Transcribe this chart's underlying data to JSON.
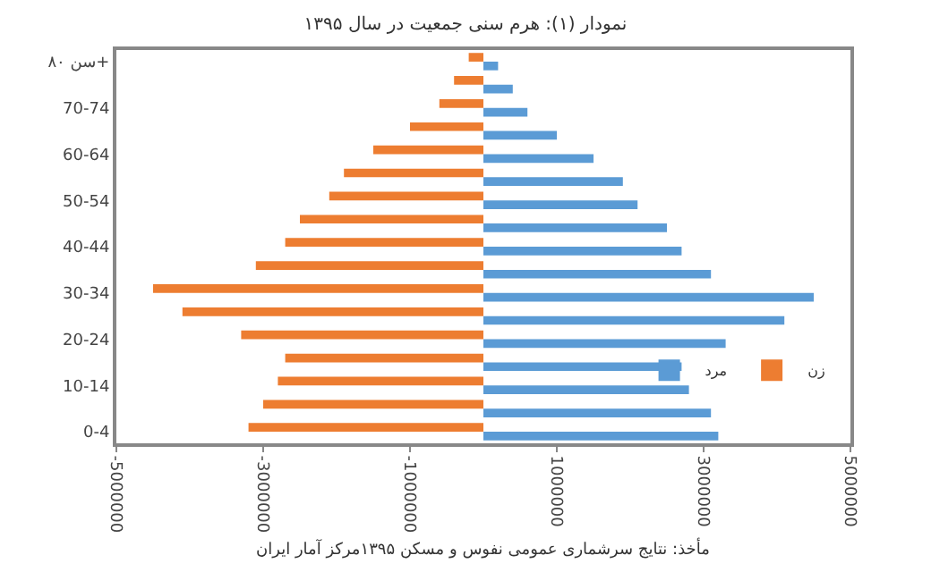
{
  "chart_data": {
    "type": "bar",
    "orientation": "horizontal",
    "title": "نمودار (۱): هرم سنی جمعیت در سال ۱۳۹۵",
    "categories": [
      "سن ۸۰+",
      null,
      "70-74",
      null,
      "60-64",
      null,
      "50-54",
      null,
      "40-44",
      null,
      "30-34",
      null,
      "20-24",
      null,
      "10-14",
      null,
      "0-4"
    ],
    "series": [
      {
        "name": "زن",
        "color": "#ed7d31",
        "values": [
          -200000,
          -400000,
          -600000,
          -1000000,
          -1500000,
          -1900000,
          -2100000,
          -2500000,
          -2700000,
          -3100000,
          -4500000,
          -4100000,
          -3300000,
          -2700000,
          -2800000,
          -3000000,
          -3200000
        ]
      },
      {
        "name": "مرد",
        "color": "#5b9bd5",
        "values": [
          200000,
          400000,
          600000,
          1000000,
          1500000,
          1900000,
          2100000,
          2500000,
          2700000,
          3100000,
          4500000,
          4100000,
          3300000,
          2700000,
          2800000,
          3100000,
          3200000
        ]
      }
    ],
    "xlim": [
      -5000000,
      5000000
    ],
    "xticks": [
      -5000000,
      -3000000,
      -1000000,
      1000000,
      3000000,
      5000000
    ],
    "legend": "bottom right",
    "annotations": [
      "مأخذ: نتایج سرشماری عمومی نفوس و مسکن ۱۳۹۵مرکز آمار ایران"
    ]
  }
}
